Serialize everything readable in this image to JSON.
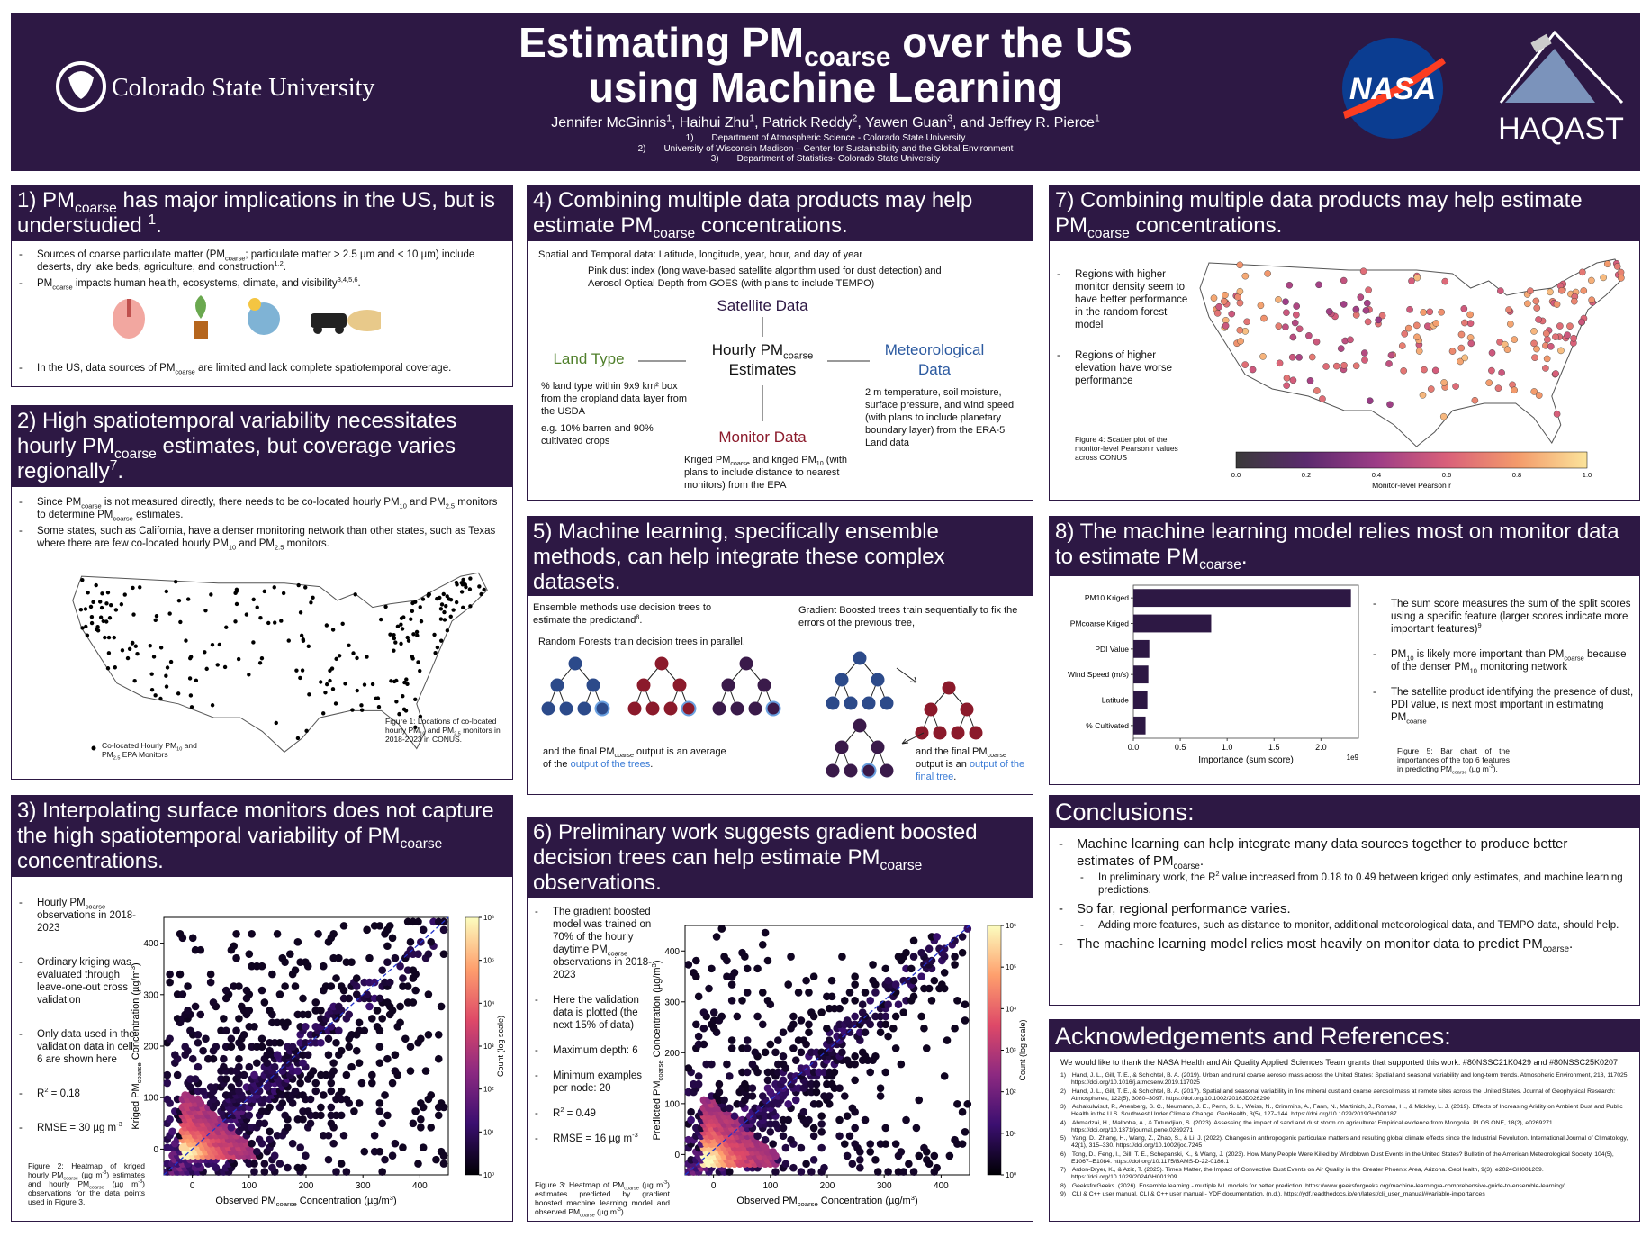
{
  "header": {
    "title_line1": [
      "Estimating PM",
      {
        "sub": "coarse"
      },
      " over the US"
    ],
    "title_line2": "using Machine Learning",
    "authors": [
      "Jennifer McGinnis",
      {
        "sup": "1"
      },
      ", Haihui Zhu",
      {
        "sup": "1"
      },
      ", Patrick Reddy",
      {
        "sup": "2"
      },
      ", Yawen Guan",
      {
        "sup": "3"
      },
      ", and Jeffrey R. Pierce",
      {
        "sup": "1"
      }
    ],
    "affiliations": [
      "1)  Department of Atmospheric Science - Colorado State University",
      "2)  University of Wisconsin Madison – Center for Sustainability and the Global Environment",
      "3)  Department of Statistics- Colorado State University"
    ],
    "csu_logo": "Colorado State University",
    "nasa_logo": "NASA",
    "haqast_logo": "HAQAST"
  },
  "s1": {
    "title": [
      "1) PM",
      {
        "sub": "coarse"
      },
      " has major implications in the US, but is understudied ",
      {
        "sup": "1"
      },
      "."
    ],
    "bullets": [
      [
        "Sources of coarse particulate matter (PM",
        {
          "sub": "coarse"
        },
        "; particulate matter > 2.5 µm and < 10 µm) include deserts, dry lake beds, agriculture, and construction",
        {
          "sup": "1,2"
        },
        "."
      ],
      [
        "PM",
        {
          "sub": "coarse"
        },
        " impacts human health, ecosystems, climate, and visibility",
        {
          "sup": "3,4,5,6"
        },
        "."
      ]
    ],
    "closing_bullet": [
      "In the US, data sources of PM",
      {
        "sub": "coarse"
      },
      " are limited and lack complete spatiotemporal coverage."
    ]
  },
  "s2": {
    "title": [
      "2) High spatiotemporal variability necessitates hourly PM",
      {
        "sub": "coarse"
      },
      " estimates, but coverage varies regionally",
      {
        "sup": "7"
      },
      "."
    ],
    "bullets": [
      [
        "Since PM",
        {
          "sub": "coarse"
        },
        " is not measured directly, there needs to be co-located hourly PM",
        {
          "sub": "10"
        },
        " and PM",
        {
          "sub": "2.5"
        },
        " monitors to determine PM",
        {
          "sub": "coarse"
        },
        " estimates."
      ],
      [
        "Some states, such as California, have a denser monitoring network than other states, such as Texas where there are few co-located hourly PM",
        {
          "sub": "10"
        },
        " and PM",
        {
          "sub": "2.5"
        },
        " monitors."
      ]
    ],
    "map_legend": [
      "Co-located Hourly PM",
      {
        "sub": "10"
      },
      " and PM",
      {
        "sub": "2.5"
      },
      " EPA Monitors"
    ],
    "caption": [
      "Figure 1: Locations of co-located hourly PM",
      {
        "sub": "10"
      },
      " and PM",
      {
        "sub": "2.5"
      },
      " monitors in 2018-2023 in CONUS."
    ]
  },
  "s3": {
    "title": [
      "3) Interpolating surface monitors does not capture the high spatiotemporal variability of PM",
      {
        "sub": "coarse"
      },
      " concentrations."
    ],
    "bullets": [
      [
        "Hourly PM",
        {
          "sub": "coarse"
        },
        " observations in 2018-2023"
      ],
      "Ordinary kriging was evaluated through leave-one-out cross validation",
      "Only data used in the validation data in cell 6 are shown here",
      [
        "R",
        {
          "sup": "2"
        },
        " = 0.18"
      ],
      [
        "RMSE = 30 µg m",
        {
          "sup": "-3"
        }
      ]
    ],
    "caption": [
      "Figure 2: Heatmap of kriged hourly PM",
      {
        "sub": "coarse"
      },
      " (µg m",
      {
        "sup": "-3"
      },
      ") estimates and hourly PM",
      {
        "sub": "coarse"
      },
      " (µg m",
      {
        "sup": "-3"
      },
      ") observations for the data points used in Figure 3."
    ],
    "figure": {
      "xlabel": [
        "Observed PM",
        {
          "sub": "coarse"
        },
        " Concentration (µg/m",
        {
          "sup": "3"
        },
        ")"
      ],
      "ylabel": [
        "Kriged PM",
        {
          "sub": "coarse"
        },
        " Concentration (µg/m",
        {
          "sup": "3"
        },
        ")"
      ],
      "xlim": [
        -50,
        450
      ],
      "ylim": [
        -50,
        450
      ],
      "xticks": [
        0,
        100,
        200,
        300,
        400
      ],
      "yticks": [
        0,
        100,
        200,
        300,
        400
      ],
      "colorbar_label": "Count (log scale)",
      "colorbar_ticks": [
        "10⁰",
        "10¹",
        "10²",
        "10³",
        "10⁴",
        "10⁵",
        "10⁶"
      ]
    }
  },
  "s4": {
    "title": [
      "4) Combining multiple data products may help estimate PM",
      {
        "sub": "coarse"
      },
      " concentrations."
    ],
    "intro": "Spatial and Temporal data: Latitude, longitude, year, hour, and day of year",
    "satellite_desc": "Pink dust index (long wave-based satellite algorithm used for dust detection) and Aerosol Optical Depth from GOES (with plans to include TEMPO)",
    "satellite": "Satellite Data",
    "center": [
      "Hourly PM",
      {
        "sub": "coarse"
      },
      " Estimates"
    ],
    "land": "Land Type",
    "land_desc": "% land type within 9x9 km² box from the cropland data layer from the USDA",
    "land_example": "e.g. 10% barren and 90% cultivated crops",
    "met": "Meteorological Data",
    "met_desc": "2 m temperature, soil moisture, surface pressure, and wind speed (with plans to include planetary boundary layer) from the ERA-5 Land data",
    "monitor": "Monitor Data",
    "monitor_desc": [
      "Kriged PM",
      {
        "sub": "coarse"
      },
      " and kriged PM",
      {
        "sub": "10"
      },
      " (with plans to include distance to nearest monitors) from the EPA"
    ]
  },
  "s5": {
    "title": "5) Machine learning, specifically ensemble methods, can help integrate these complex datasets.",
    "ensemble": [
      "Ensemble methods use decision trees to estimate the predictand",
      {
        "sup": "8"
      },
      "."
    ],
    "rf": "Random Forests train decision trees in parallel,",
    "rf_out": [
      "and the final PM",
      {
        "sub": "coarse"
      },
      " output is an average of the ",
      {
        "em": "output of the trees"
      },
      "."
    ],
    "gb": "Gradient Boosted trees train sequentially to fix the errors of the previous tree,",
    "gb_out": [
      "and the final PM",
      {
        "sub": "coarse"
      },
      " output is an ",
      {
        "em": "output of the final tree"
      },
      "."
    ]
  },
  "s6": {
    "title": [
      "6) Preliminary work suggests gradient boosted decision trees can help estimate PM",
      {
        "sub": "coarse"
      },
      " observations."
    ],
    "bullets": [
      [
        "The gradient boosted model was trained on 70% of the hourly daytime PM",
        {
          "sub": "coarse"
        },
        " observations in 2018-2023"
      ],
      "Here the validation data is plotted (the next 15% of data)",
      "Maximum depth: 6",
      "Minimum examples per node: 20",
      [
        "R",
        {
          "sup": "2"
        },
        " = 0.49"
      ],
      [
        "RMSE = 16 µg m",
        {
          "sup": "-3"
        }
      ]
    ],
    "caption": [
      "Figure 3: Heatmap of PM",
      {
        "sub": "coarse"
      },
      " (µg m",
      {
        "sup": "-3"
      },
      ") estimates predicted by gradient boosted machine learning model and observed PM",
      {
        "sub": "coarse"
      },
      " (µg m",
      {
        "sup": "-3"
      },
      ")."
    ],
    "figure": {
      "xlabel": [
        "Observed PM",
        {
          "sub": "coarse"
        },
        " Concentration (µg/m",
        {
          "sup": "3"
        },
        ")"
      ],
      "ylabel": [
        "Predicted PM",
        {
          "sub": "coarse"
        },
        " Concentration (µg/m",
        {
          "sup": "3"
        },
        ")"
      ],
      "xlim": [
        -50,
        450
      ],
      "ylim": [
        -40,
        450
      ],
      "xticks": [
        0,
        100,
        200,
        300,
        400
      ],
      "yticks": [
        0,
        100,
        200,
        300,
        400
      ],
      "colorbar_label": "Count (log scale)",
      "colorbar_ticks": [
        "10⁰",
        "10¹",
        "10²",
        "10³",
        "10⁴",
        "10⁵",
        "10⁶"
      ]
    }
  },
  "s7": {
    "title": [
      "7) Combining multiple data products may help estimate PM",
      {
        "sub": "coarse"
      },
      " concentrations."
    ],
    "bullets": [
      "Regions with higher monitor density seem to have better performance in the random forest model",
      "Regions of higher elevation have worse performance"
    ],
    "caption": "Figure 4: Scatter plot of the monitor-level Pearson r values across CONUS",
    "colorbar_ticks": [
      "0.0",
      "0.2",
      "0.4",
      "0.6",
      "0.8",
      "1.0"
    ],
    "colorbar_label": "Monitor-level Pearson r"
  },
  "s8": {
    "title": [
      "8) The machine learning model relies most on monitor data to estimate PM",
      {
        "sub": "coarse"
      },
      "."
    ],
    "bullets": [
      [
        "The sum score measures the sum of the split scores using a specific feature (larger scores indicate more important features)",
        {
          "sup": "9"
        }
      ],
      [
        "PM",
        {
          "sub": "10"
        },
        " is likely more important than PM",
        {
          "sub": "coarse"
        },
        " because of the denser PM",
        {
          "sub": "10"
        },
        " monitoring network"
      ],
      [
        "The satellite product identifying the presence of dust, PDI value, is next most important in estimating PM",
        {
          "sub": "coarse"
        }
      ]
    ],
    "caption": [
      "Figure 5: Bar chart of the importances of the top 6 features in predicting PM",
      {
        "sub": "coarse"
      },
      " (µg m",
      {
        "sup": "-3"
      },
      ")."
    ]
  },
  "chart_data": {
    "type": "bar",
    "orientation": "horizontal",
    "categories": [
      "PM10 Kriged",
      "PMcoarse Kriged",
      "PDI Value",
      "Wind Speed (m/s)",
      "Latitude",
      "% Cultivated"
    ],
    "values": [
      2.32,
      0.83,
      0.17,
      0.16,
      0.15,
      0.13
    ],
    "color": "#2d1844",
    "xlim": [
      0,
      2.4
    ],
    "xticks": [
      {
        "value": 0,
        "label": "0.0"
      },
      0.5,
      {
        "value": 1,
        "label": "1.0"
      },
      1.5,
      {
        "value": 2,
        "label": "2.0"
      }
    ],
    "xlabel": "Importance (sum score)",
    "x_offset_label": "1e9"
  },
  "conclusions": {
    "title": "Conclusions:",
    "items": [
      {
        "text": [
          "Machine learning can help integrate many data sources together to produce better estimates of PM",
          {
            "sub": "coarse"
          },
          "."
        ],
        "children": [
          [
            "In preliminary work, the R",
            {
              "sup": "2"
            },
            " value increased from 0.18 to 0.49 between kriged only estimates, and machine learning predictions."
          ]
        ]
      },
      {
        "text": "So far, regional performance varies.",
        "children": [
          "Adding more features, such as distance to monitor, additional meteorological data, and TEMPO data, should help."
        ]
      },
      {
        "text": [
          "The machine learning model relies most heavily on monitor data to predict PM",
          {
            "sub": "coarse"
          },
          "."
        ],
        "children": []
      }
    ]
  },
  "acknowledgements": {
    "title": "Acknowledgements and References:",
    "thanks": "We would like to thank the NASA Health and Air Quality Applied Sciences Team grants that supported this work: #80NSSC21K0429 and #80NSSC25K0207",
    "references": [
      "1) Hand, J. L., Gill, T. E., & Schichtel, B. A. (2019). Urban and rural coarse aerosol mass across the United States: Spatial and seasonal variability and long-term trends. Atmospheric Environment, 218, 117025. https://doi.org/10.1016/j.atmosenv.2019.117025",
      "2) Hand, J. L., Gill, T. E., & Schichtel, B. A. (2017). Spatial and seasonal variability in fine mineral dust and coarse aerosol mass at remote sites across the United States. Journal of Geophysical Research: Atmospheres, 122(5), 3080–3097. https://doi.org/10.1002/2016JD026290",
      "3) Achakulwisut, P., Anenberg, S. C., Neumann, J. E., Penn, S. L., Weiss, N., Crimmins, A., Fann, N., Martinich, J., Roman, H., & Mickley, L. J. (2019). Effects of Increasing Aridity on Ambient Dust and Public Health in the U.S. Southwest Under Climate Change. GeoHealth, 3(5), 127–144. https://doi.org/10.1029/2019GH000187",
      "4) Ahmadzai, H., Malhotra, A., & Tutundjian, S. (2023). Assessing the impact of sand and dust storm on agriculture: Empirical evidence from Mongolia. PLOS ONE, 18(2), e0269271. https://doi.org/10.1371/journal.pone.0269271",
      "5) Yang, D., Zhang, H., Wang, Z., Zhao, S., & Li, J. (2022). Changes in anthropogenic particulate matters and resulting global climate effects since the Industrial Revolution. International Journal of Climatology, 42(1), 315–330. https://doi.org/10.1002/joc.7245",
      "6) Tong, D., Feng, I., Gill, T. E., Schepanski, K., & Wang, J. (2023). How Many People Were Killed by Windblown Dust Events in the United States? Bulletin of the American Meteorological Society, 104(5), E1067–E1084. https://doi.org/10.1175/BAMS-D-22-0186.1",
      "7) Ardon-Dryer, K., & Aziz, T. (2025). Times Matter, the Impact of Convective Dust Events on Air Quality in the Greater Phoenix Area, Arizona. GeoHealth, 9(3), e2024GH001209. https://doi.org/10.1029/2024GH001209",
      "8) GeeksforGeeks. (2026). Ensemble learning - multiple ML models for better prediction. https://www.geeksforgeeks.org/machine-learning/a-comprehensive-guide-to-ensemble-learning/",
      "9) CLI & C++ user manual. CLI & C++ user manual - YDF documentation. (n.d.). https://ydf.readthedocs.io/en/latest/cli_user_manual/#variable-importances"
    ]
  }
}
